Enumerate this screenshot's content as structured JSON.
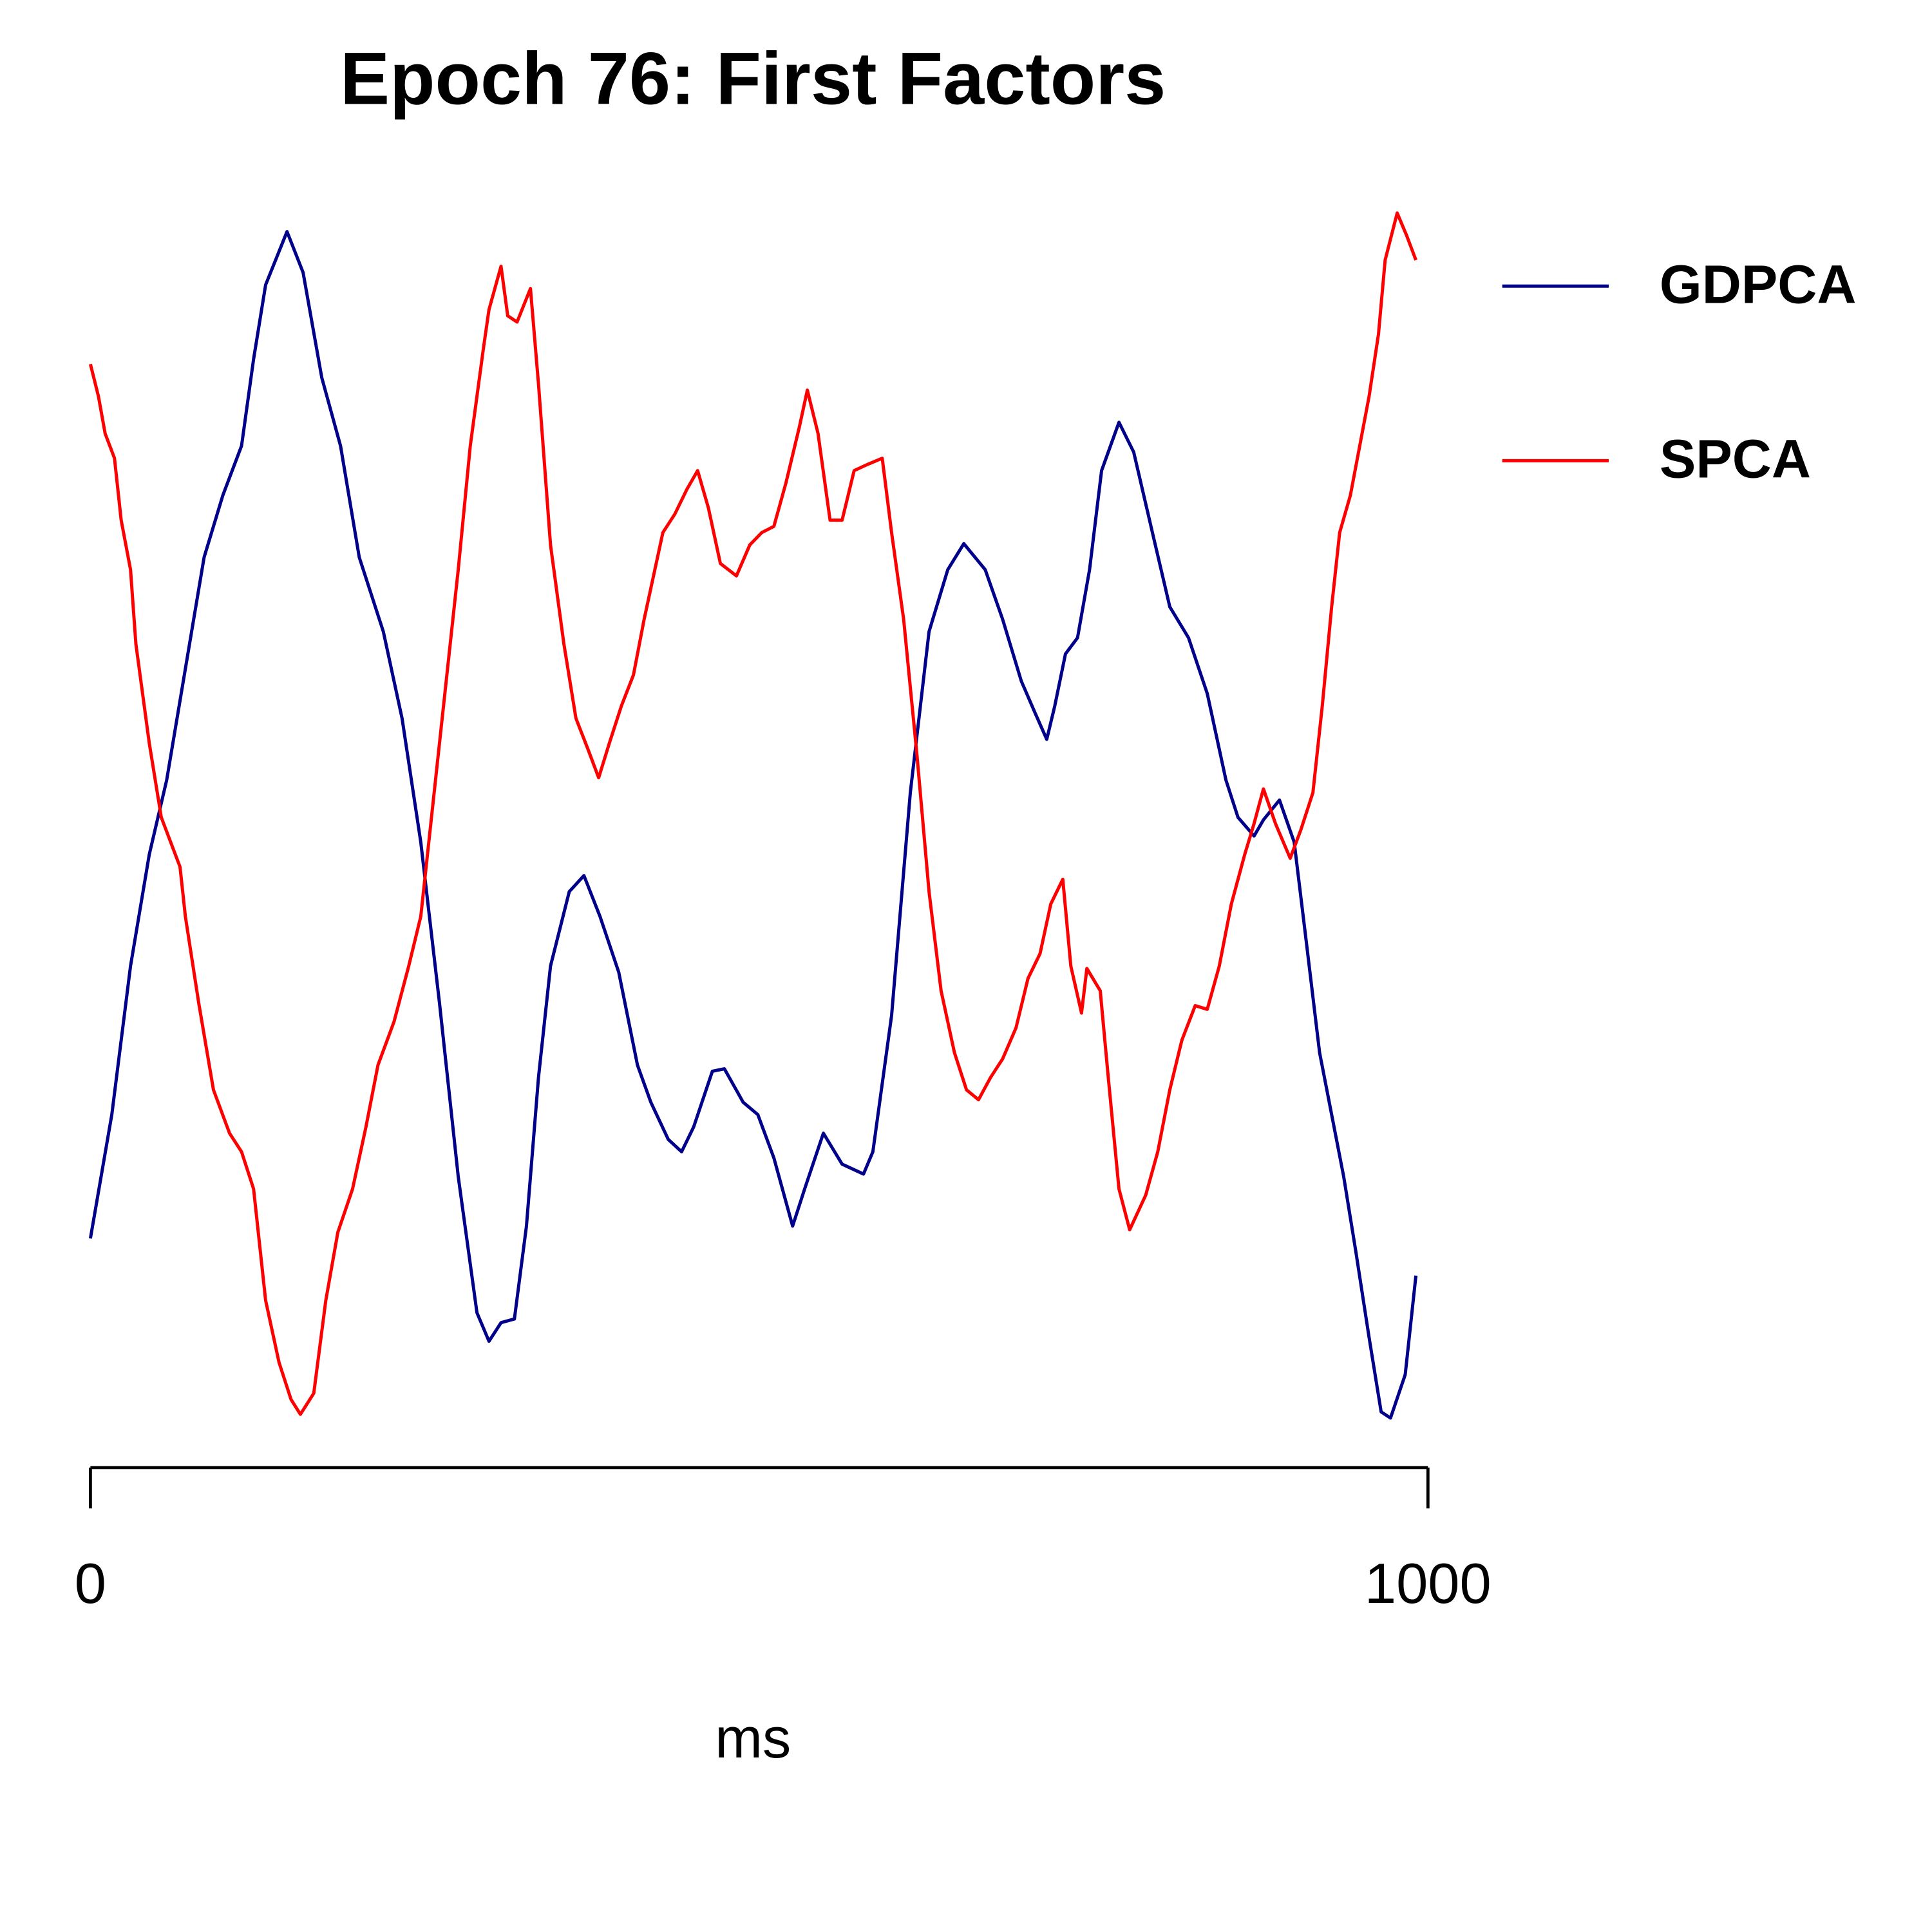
{
  "chart_data": {
    "type": "line",
    "title": "Epoch 76: First Factors",
    "x_label": "ms",
    "xlim": [
      0,
      1000
    ],
    "xticks": [
      0,
      1000
    ],
    "ylim": [
      0,
      100
    ],
    "legend": "right",
    "series": [
      {
        "name": "GDPCA",
        "color": "#00008b",
        "x": [
          0,
          16,
          30,
          44,
          57,
          71,
          85,
          99,
          113,
          122,
          131,
          147,
          159,
          173,
          187,
          201,
          219,
          233,
          247,
          261,
          275,
          289,
          298,
          307,
          317,
          326,
          335,
          344,
          358,
          369,
          381,
          395,
          409,
          419,
          432,
          442,
          451,
          465,
          474,
          488,
          499,
          511,
          525,
          534,
          548,
          562,
          578,
          585,
          599,
          613,
          627,
          641,
          653,
          669,
          682,
          696,
          706,
          715,
          721,
          729,
          738,
          747,
          756,
          769,
          780,
          794,
          807,
          821,
          835,
          849,
          858,
          870,
          877,
          889,
          900,
          909,
          919,
          928,
          937,
          946,
          956,
          965,
          972,
          983,
          991
        ],
        "values": [
          16,
          26,
          38,
          47,
          53,
          62,
          71,
          76,
          80,
          87,
          93,
          97.3,
          94,
          85.5,
          80,
          71,
          65,
          58,
          48,
          35,
          21,
          10,
          7.7,
          9.2,
          9.5,
          17,
          29,
          38,
          44,
          45.3,
          42,
          37.5,
          30,
          27,
          24,
          23,
          25,
          29.5,
          29.7,
          27,
          26,
          22.5,
          17,
          20,
          24.5,
          22,
          21.2,
          23,
          34,
          52,
          65,
          70,
          72.1,
          70,
          66,
          61,
          58.5,
          56.3,
          59,
          63.2,
          64.5,
          70,
          78,
          81.9,
          79.5,
          73,
          67,
          64.5,
          60,
          53,
          50,
          48.5,
          49.8,
          51.4,
          48,
          40,
          31,
          26,
          21,
          15,
          8,
          2,
          1.5,
          5,
          13
        ]
      },
      {
        "name": "SPCA",
        "color": "#ff0000",
        "x": [
          0,
          6,
          11,
          18,
          23,
          30,
          34,
          44,
          53,
          67,
          71,
          81,
          92,
          104,
          113,
          122,
          131,
          141,
          150,
          157,
          167,
          176,
          185,
          196,
          206,
          215,
          227,
          238,
          247,
          256,
          265,
          275,
          284,
          294,
          298,
          307,
          312,
          319,
          329,
          335,
          344,
          354,
          363,
          372,
          380,
          388,
          397,
          406,
          414,
          421,
          428,
          437,
          446,
          454,
          462,
          471,
          483,
          493,
          502,
          511,
          520,
          530,
          536,
          544,
          553,
          562,
          571,
          581,
          592,
          599,
          608,
          618,
          627,
          636,
          646,
          655,
          664,
          673,
          682,
          692,
          701,
          710,
          718,
          727,
          733,
          741,
          745,
          755,
          761,
          769,
          777,
          789,
          798,
          807,
          816,
          826,
          835,
          844,
          853,
          863,
          870,
          877,
          886,
          897,
          905,
          914,
          921,
          928,
          934,
          942,
          949,
          956,
          963,
          968,
          977,
          984,
          991
        ],
        "values": [
          86.6,
          84,
          81,
          79,
          74,
          70,
          64,
          56,
          50,
          46,
          42,
          35,
          28,
          24.5,
          23,
          20,
          11,
          6,
          3,
          1.8,
          3.5,
          11,
          16.5,
          20,
          25,
          30,
          33.5,
          38,
          42,
          51,
          60,
          70,
          80,
          88,
          91,
          94.5,
          90.5,
          90,
          92.7,
          85,
          72,
          64,
          58,
          55.5,
          53.2,
          56,
          59,
          61.5,
          66,
          69.5,
          73,
          74.5,
          76.5,
          78,
          75,
          70.5,
          69.5,
          72,
          73,
          73.5,
          77,
          81.5,
          84.5,
          81,
          74,
          74,
          78,
          78.5,
          79,
          73,
          66,
          55,
          44,
          36,
          31,
          28,
          27.2,
          29,
          30.5,
          33,
          37,
          39,
          43,
          45,
          38,
          34.2,
          37.8,
          36,
          29,
          20,
          16.7,
          19.5,
          23,
          28,
          32,
          34.8,
          34.5,
          38,
          43,
          47,
          49.5,
          52.3,
          49.5,
          46.7,
          49,
          52,
          59,
          67,
          73,
          76,
          80,
          84,
          89,
          95,
          98.8,
          97,
          95
        ]
      }
    ]
  }
}
